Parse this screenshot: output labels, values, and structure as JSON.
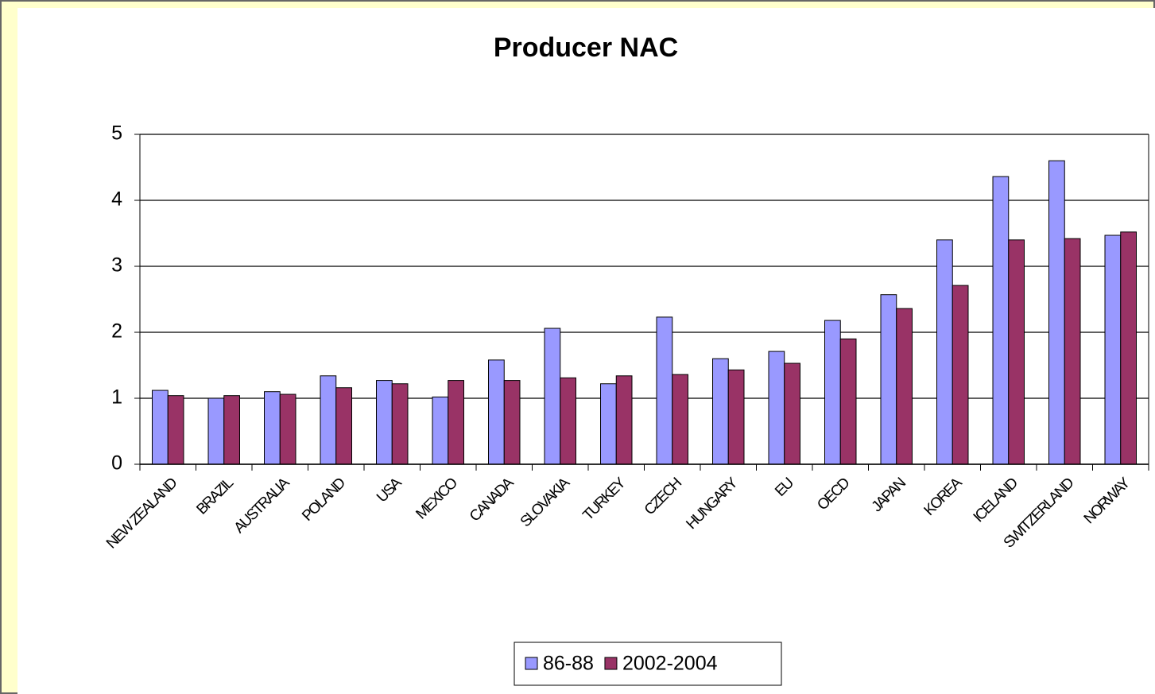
{
  "chart_data": {
    "type": "bar",
    "title": "Producer NAC",
    "categories": [
      "NEW ZEALAND",
      "BRAZIL",
      "AUSTRALIA",
      "POLAND",
      "USA",
      "MEXICO",
      "CANADA",
      "SLOVAKIA",
      "TURKEY",
      "CZECH",
      "HUNGARY",
      "EU",
      "OECD",
      "JAPAN",
      "KOREA",
      "ICELAND",
      "SWITZERLAND",
      "NORWAY"
    ],
    "series": [
      {
        "name": "86-88",
        "color": "#9999ff",
        "values": [
          1.12,
          1.0,
          1.1,
          1.34,
          1.27,
          1.02,
          1.58,
          2.06,
          1.22,
          2.23,
          1.6,
          1.71,
          2.18,
          2.57,
          3.4,
          4.36,
          4.6,
          3.47
        ]
      },
      {
        "name": "2002-2004",
        "color": "#993366",
        "values": [
          1.04,
          1.04,
          1.06,
          1.16,
          1.22,
          1.27,
          1.27,
          1.31,
          1.34,
          1.36,
          1.43,
          1.53,
          1.9,
          2.36,
          2.71,
          3.4,
          3.42,
          3.52
        ]
      }
    ],
    "ylim": [
      0,
      5
    ],
    "yticks": [
      0,
      1,
      2,
      3,
      4,
      5
    ],
    "grid": true,
    "legend": "bottom"
  }
}
